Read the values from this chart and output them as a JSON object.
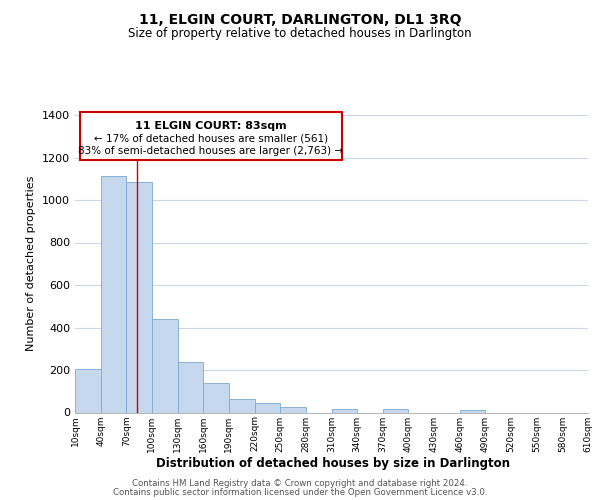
{
  "title": "11, ELGIN COURT, DARLINGTON, DL1 3RQ",
  "subtitle": "Size of property relative to detached houses in Darlington",
  "xlabel": "Distribution of detached houses by size in Darlington",
  "ylabel": "Number of detached properties",
  "bar_color": "#c5d8ee",
  "bar_edge_color": "#7aaad0",
  "vline_color": "#cc0000",
  "vline_x": 83,
  "annotation_title": "11 ELGIN COURT: 83sqm",
  "annotation_line1": "← 17% of detached houses are smaller (561)",
  "annotation_line2": "83% of semi-detached houses are larger (2,763) →",
  "ylim": [
    0,
    1400
  ],
  "yticks": [
    0,
    200,
    400,
    600,
    800,
    1000,
    1200,
    1400
  ],
  "bin_edges": [
    10,
    40,
    70,
    100,
    130,
    160,
    190,
    220,
    250,
    280,
    310,
    340,
    370,
    400,
    430,
    460,
    490,
    520,
    550,
    580,
    610
  ],
  "bin_labels": [
    "10sqm",
    "40sqm",
    "70sqm",
    "100sqm",
    "130sqm",
    "160sqm",
    "190sqm",
    "220sqm",
    "250sqm",
    "280sqm",
    "310sqm",
    "340sqm",
    "370sqm",
    "400sqm",
    "430sqm",
    "460sqm",
    "490sqm",
    "520sqm",
    "550sqm",
    "580sqm",
    "610sqm"
  ],
  "counts": [
    205,
    1115,
    1085,
    438,
    240,
    140,
    62,
    47,
    25,
    0,
    18,
    0,
    15,
    0,
    0,
    10,
    0,
    0,
    0,
    0
  ],
  "footer1": "Contains HM Land Registry data © Crown copyright and database right 2024.",
  "footer2": "Contains public sector information licensed under the Open Government Licence v3.0.",
  "background_color": "#ffffff",
  "grid_color": "#c8d8e8"
}
